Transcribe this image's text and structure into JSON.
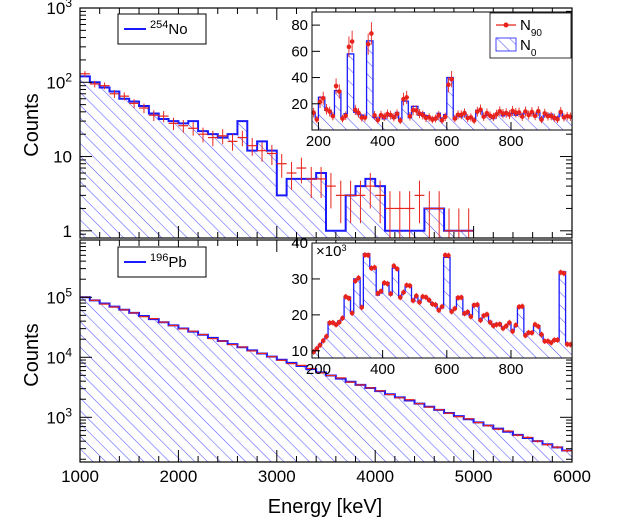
{
  "colors": {
    "nucleus_line": "#1a1aff",
    "hatch": "#5656ff",
    "n90": "#e8231c",
    "frame": "#000000"
  },
  "xlabel": "Energy [keV]",
  "ylabel": "Counts",
  "x_ticks": [
    "1000",
    "2000",
    "3000",
    "4000",
    "5000",
    "6000"
  ],
  "chart_data": [
    {
      "panel": "top",
      "type": "histogram",
      "scale": "log",
      "legend": {
        "nucleus": "254",
        "element": "No"
      },
      "xlim": [
        1000,
        6000
      ],
      "ylim": [
        0.8,
        1000
      ],
      "y_ticks": [
        {
          "base": "10",
          "exp": "3",
          "value": 1000
        },
        {
          "base": "10",
          "exp": "2",
          "value": 100
        },
        {
          "base": "10",
          "exp": "",
          "value": 10
        },
        {
          "base": "1",
          "exp": "",
          "value": 1
        }
      ],
      "bin_width": 100,
      "x": [
        1000,
        1100,
        1200,
        1300,
        1400,
        1500,
        1600,
        1700,
        1800,
        1900,
        2000,
        2100,
        2200,
        2300,
        2400,
        2500,
        2600,
        2700,
        2800,
        2900,
        3000,
        3100,
        3200,
        3300,
        3400,
        3500,
        3600,
        3700,
        3800,
        3900,
        4000,
        4100,
        4200,
        4300,
        4400,
        4500,
        4600,
        4700,
        4800,
        4900
      ],
      "series": [
        {
          "name": "N0",
          "values": [
            120,
            100,
            85,
            75,
            60,
            55,
            48,
            38,
            32,
            30,
            28,
            30,
            22,
            20,
            18,
            20,
            30,
            12,
            16,
            12,
            3,
            5,
            5,
            5,
            6,
            1,
            1,
            3,
            4,
            5,
            4,
            1,
            1,
            1,
            1,
            2,
            2,
            1,
            1,
            1
          ]
        },
        {
          "name": "N90",
          "values": [
            130,
            95,
            90,
            70,
            65,
            52,
            45,
            36,
            35,
            28,
            26,
            24,
            20,
            18,
            19,
            16,
            18,
            14,
            12,
            11,
            8,
            6,
            7,
            5,
            5,
            4,
            3,
            3,
            3,
            4,
            3,
            2,
            2,
            2,
            3,
            2,
            2,
            1,
            1,
            1
          ]
        }
      ]
    },
    {
      "panel": "bottom",
      "type": "histogram",
      "scale": "log",
      "legend": {
        "nucleus": "196",
        "element": "Pb"
      },
      "xlim": [
        1000,
        6000
      ],
      "ylim": [
        180,
        900000
      ],
      "y_ticks": [
        {
          "base": "10",
          "exp": "5",
          "value": 100000
        },
        {
          "base": "10",
          "exp": "4",
          "value": 10000
        },
        {
          "base": "10",
          "exp": "3",
          "value": 1000
        }
      ],
      "bin_width": 100,
      "log_start": 100000,
      "log_end": 280,
      "nbins": 50
    },
    {
      "panel": "top-inset",
      "type": "histogram",
      "xlim": [
        180,
        990
      ],
      "ylim": [
        0,
        90
      ],
      "x_ticks": [
        200,
        400,
        600,
        800
      ],
      "y_ticks": [
        20,
        40,
        60,
        80
      ],
      "legend": [
        {
          "name": "N",
          "sub": "90"
        },
        {
          "name": "N",
          "sub": "0"
        }
      ],
      "bin_width": 10,
      "baseline": 8,
      "peaks": [
        [
          210,
          25
        ],
        [
          230,
          15
        ],
        [
          260,
          30
        ],
        [
          300,
          58
        ],
        [
          320,
          12
        ],
        [
          360,
          68
        ],
        [
          470,
          22
        ],
        [
          500,
          18
        ],
        [
          610,
          40
        ],
        [
          700,
          15
        ],
        [
          830,
          12
        ],
        [
          970,
          10
        ]
      ]
    },
    {
      "panel": "bottom-inset",
      "type": "histogram",
      "xlim": [
        180,
        990
      ],
      "ylim": [
        8000,
        40000
      ],
      "multiplier": "×10",
      "multiplier_exp": "3",
      "x_ticks": [
        200,
        400,
        600,
        800
      ],
      "y_ticks": [
        10,
        20,
        30,
        40
      ],
      "bin_width": 10,
      "peaks": [
        [
          240,
          18000
        ],
        [
          290,
          25000
        ],
        [
          320,
          30000
        ],
        [
          350,
          37000
        ],
        [
          370,
          33000
        ],
        [
          410,
          29000
        ],
        [
          440,
          33000
        ],
        [
          480,
          28000
        ],
        [
          510,
          22000
        ],
        [
          530,
          25000
        ],
        [
          600,
          36000
        ],
        [
          640,
          25000
        ],
        [
          690,
          23000
        ],
        [
          720,
          20000
        ],
        [
          830,
          22000
        ],
        [
          880,
          17000
        ],
        [
          960,
          32000
        ]
      ]
    }
  ]
}
